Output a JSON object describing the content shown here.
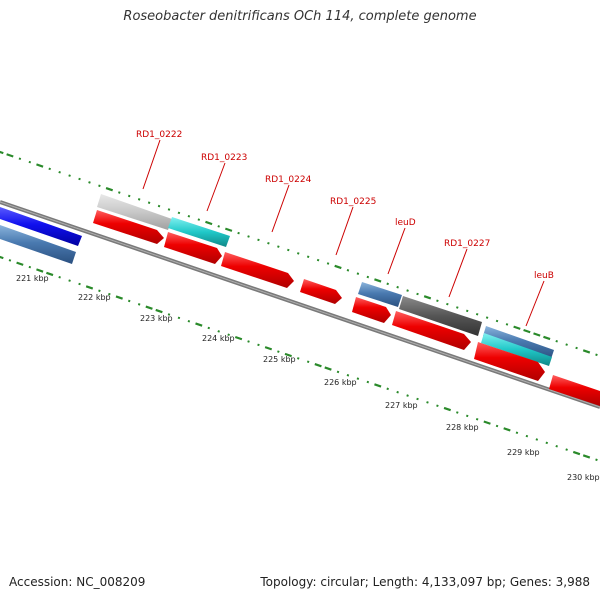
{
  "title": "Roseobacter denitrificans OCh 114, complete genome",
  "footer": {
    "accession": "Accession: NC_008209",
    "stats": "Topology: circular; Length: 4,133,097 bp; Genes: 3,988"
  },
  "colors": {
    "backbone": "#7a7a7a",
    "gc_marks": "#2a8a2a",
    "label_red": "#cc0000",
    "leader": "#cc0000"
  },
  "tick_labels": [
    "221 kbp",
    "222 kbp",
    "223 kbp",
    "224 kbp",
    "225 kbp",
    "226 kbp",
    "227 kbp",
    "228 kbp",
    "229 kbp",
    "230 kbp"
  ],
  "gene_labels": [
    "RD1_0222",
    "RD1_0223",
    "RD1_0224",
    "RD1_0225",
    "leuD",
    "RD1_0227",
    "leuB"
  ],
  "features": [
    {
      "name": "blue-feature",
      "track": "outer-far",
      "color": "#1a1aee"
    },
    {
      "name": "steel-feature",
      "track": "outer",
      "color": "#4a7ab0"
    },
    {
      "name": "grey-feature",
      "track": "inner-top",
      "color": "#c8c8c8"
    },
    {
      "name": "cyan-feature",
      "track": "inner-top",
      "color": "#20c8c8"
    },
    {
      "name": "red-cds-1",
      "track": "cds",
      "color": "#ee1111"
    },
    {
      "name": "red-cds-2",
      "track": "cds",
      "color": "#ee1111"
    },
    {
      "name": "red-cds-3",
      "track": "cds",
      "color": "#ee1111"
    },
    {
      "name": "red-cds-4",
      "track": "cds",
      "color": "#ee1111"
    },
    {
      "name": "steel-feature-2",
      "track": "inner-top",
      "color": "#4a7ab0"
    },
    {
      "name": "red-cds-5",
      "track": "cds",
      "color": "#ee1111"
    },
    {
      "name": "darkgrey-feature",
      "track": "inner-top",
      "color": "#555555"
    },
    {
      "name": "red-cds-6",
      "track": "cds",
      "color": "#ee1111"
    },
    {
      "name": "steel-feature-3",
      "track": "inner-top",
      "color": "#4a7ab0"
    },
    {
      "name": "cyan-feature-2",
      "track": "inner-top",
      "color": "#20e0e0"
    },
    {
      "name": "red-cds-7",
      "track": "cds",
      "color": "#ee1111"
    }
  ]
}
